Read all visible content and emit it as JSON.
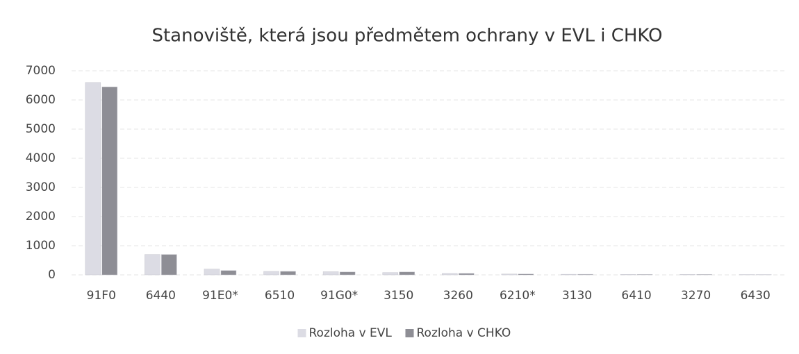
{
  "chart_data": {
    "type": "bar",
    "title": "Stanoviště, která jsou předmětem ochrany v EVL i CHKO",
    "categories": [
      "91F0",
      "6440",
      "91E0*",
      "6510",
      "91G0*",
      "3150",
      "3260",
      "6210*",
      "3130",
      "6410",
      "3270",
      "6430"
    ],
    "series": [
      {
        "name": "Rozloha v EVL",
        "color": "#dcdce4",
        "values": [
          6600,
          700,
          200,
          120,
          110,
          80,
          50,
          30,
          20,
          15,
          15,
          10
        ]
      },
      {
        "name": "Rozloha v CHKO",
        "color": "#8e8e95",
        "values": [
          6450,
          700,
          150,
          120,
          100,
          100,
          50,
          30,
          20,
          15,
          15,
          10
        ]
      }
    ],
    "ylim": [
      0,
      7000
    ],
    "yticks": [
      0,
      1000,
      2000,
      3000,
      4000,
      5000,
      6000,
      7000
    ],
    "grid": true,
    "legend": "bottom"
  }
}
